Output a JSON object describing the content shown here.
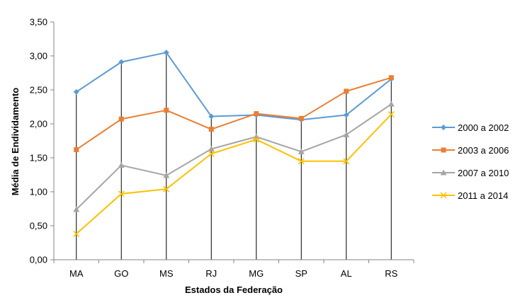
{
  "chart_data": {
    "type": "line",
    "title": "",
    "xlabel": "Estados da Federação",
    "ylabel": "Média de Endividamento",
    "categories": [
      "MA",
      "GO",
      "MS",
      "RJ",
      "MG",
      "SP",
      "AL",
      "RS"
    ],
    "ylim": [
      0,
      3.5
    ],
    "yticks": [
      "0,00",
      "0,50",
      "1,00",
      "1,50",
      "2,00",
      "2,50",
      "3,00",
      "3,50"
    ],
    "ytick_values": [
      0,
      0.5,
      1,
      1.5,
      2,
      2.5,
      3,
      3.5
    ],
    "grid": false,
    "drop_lines": true,
    "legend_position": "right",
    "series": [
      {
        "name": "2000 a 2002",
        "color": "#5b9bd5",
        "marker": "diamond",
        "values": [
          2.47,
          2.91,
          3.05,
          2.11,
          2.13,
          2.06,
          2.13,
          2.66
        ]
      },
      {
        "name": "2003 a 2006",
        "color": "#ed7d31",
        "marker": "square",
        "values": [
          1.62,
          2.07,
          2.2,
          1.92,
          2.15,
          2.08,
          2.48,
          2.68
        ]
      },
      {
        "name": "2007 a 2010",
        "color": "#a5a5a5",
        "marker": "triangle",
        "values": [
          0.74,
          1.39,
          1.24,
          1.63,
          1.81,
          1.59,
          1.84,
          2.29
        ]
      },
      {
        "name": "2011 a 2014",
        "color": "#ffc000",
        "marker": "x",
        "values": [
          0.38,
          0.97,
          1.04,
          1.56,
          1.77,
          1.45,
          1.45,
          2.14
        ]
      }
    ]
  }
}
